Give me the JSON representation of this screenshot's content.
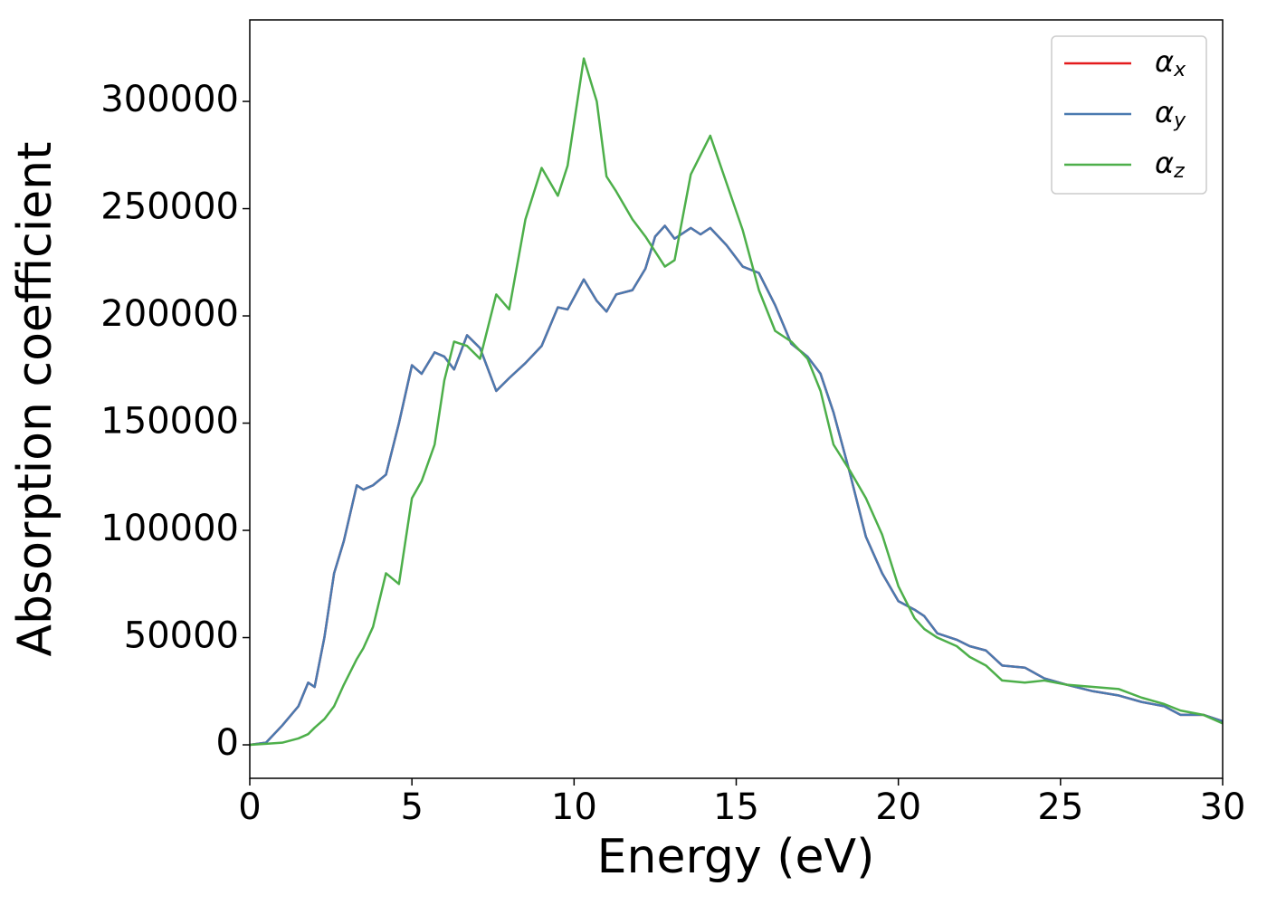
{
  "chart_data": {
    "type": "line",
    "x_label": "Energy (eV)",
    "y_label": "Absorption coefficient",
    "x": [
      0,
      0.5,
      1.0,
      1.5,
      1.8,
      2.0,
      2.3,
      2.6,
      2.9,
      3.3,
      3.5,
      3.8,
      4.2,
      4.6,
      5.0,
      5.3,
      5.7,
      6.0,
      6.3,
      6.7,
      7.1,
      7.6,
      8.0,
      8.5,
      9.0,
      9.5,
      9.8,
      10.3,
      10.7,
      11.0,
      11.3,
      11.8,
      12.2,
      12.5,
      12.8,
      13.1,
      13.6,
      13.9,
      14.2,
      14.7,
      15.2,
      15.7,
      16.2,
      16.7,
      17.2,
      17.6,
      18.0,
      18.5,
      19.0,
      19.5,
      20.0,
      20.5,
      20.8,
      21.2,
      21.8,
      22.2,
      22.7,
      23.2,
      23.9,
      24.5,
      25.2,
      26.0,
      26.8,
      27.5,
      28.2,
      28.7,
      29.4,
      30
    ],
    "series": [
      {
        "name": "αx",
        "color": "#e41a1c",
        "values": [
          0,
          1000,
          9000,
          18000,
          29000,
          27000,
          50000,
          80000,
          95000,
          121000,
          119000,
          121000,
          126000,
          150000,
          177000,
          173000,
          183000,
          181000,
          175000,
          191000,
          185000,
          165000,
          171000,
          178000,
          186000,
          204000,
          203000,
          217000,
          207000,
          202000,
          210000,
          212000,
          222000,
          237000,
          242000,
          236000,
          241000,
          238000,
          241000,
          233000,
          223000,
          220000,
          205000,
          187000,
          181000,
          173000,
          155000,
          127000,
          97000,
          80000,
          67000,
          63000,
          60000,
          52000,
          49000,
          46000,
          44000,
          37000,
          36000,
          31000,
          28000,
          25000,
          23000,
          20000,
          18000,
          14000,
          14000,
          11000
        ]
      },
      {
        "name": "αy",
        "color": "#4a7ab0",
        "values": [
          0,
          1000,
          9000,
          18000,
          29000,
          27000,
          50000,
          80000,
          95000,
          121000,
          119000,
          121000,
          126000,
          150000,
          177000,
          173000,
          183000,
          181000,
          175000,
          191000,
          185000,
          165000,
          171000,
          178000,
          186000,
          204000,
          203000,
          217000,
          207000,
          202000,
          210000,
          212000,
          222000,
          237000,
          242000,
          236000,
          241000,
          238000,
          241000,
          233000,
          223000,
          220000,
          205000,
          187000,
          181000,
          173000,
          155000,
          127000,
          97000,
          80000,
          67000,
          63000,
          60000,
          52000,
          49000,
          46000,
          44000,
          37000,
          36000,
          31000,
          28000,
          25000,
          23000,
          20000,
          18000,
          14000,
          14000,
          11000
        ]
      },
      {
        "name": "αz",
        "color": "#4daf4a",
        "values": [
          0,
          500,
          1000,
          3000,
          5000,
          8000,
          12000,
          18000,
          28000,
          40000,
          45000,
          55000,
          80000,
          75000,
          115000,
          123000,
          140000,
          170000,
          188000,
          186000,
          180000,
          210000,
          203000,
          245000,
          269000,
          256000,
          270000,
          320000,
          300000,
          265000,
          258000,
          245000,
          237000,
          230000,
          223000,
          226000,
          266000,
          275000,
          284000,
          262000,
          240000,
          212000,
          193000,
          188000,
          180000,
          165000,
          140000,
          128000,
          115000,
          98000,
          74000,
          59000,
          54000,
          50000,
          46000,
          41000,
          37000,
          30000,
          29000,
          30000,
          28000,
          27000,
          26000,
          22000,
          19000,
          16000,
          14000,
          10000
        ]
      }
    ],
    "xlim": [
      0,
      30
    ],
    "xticks": [
      0,
      5,
      10,
      15,
      20,
      25,
      30
    ],
    "ylim": [
      -15600,
      338000
    ],
    "yticks": [
      0,
      50000,
      100000,
      150000,
      200000,
      250000,
      300000
    ],
    "legend": "upper right"
  }
}
